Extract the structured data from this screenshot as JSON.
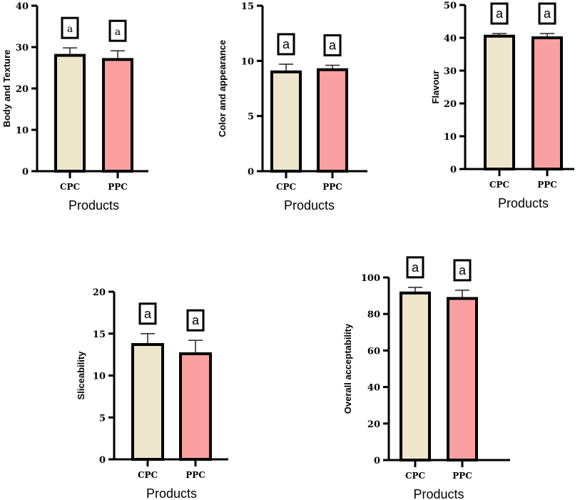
{
  "chart_data": [
    {
      "type": "bar",
      "ylabel": "Body and Texture",
      "xlabel": "Products",
      "categories": [
        "CPC",
        "PPC"
      ],
      "values": [
        28,
        27
      ],
      "errors": [
        1.8,
        2.1
      ],
      "letters": [
        "a",
        "a"
      ],
      "ylim": [
        0,
        40
      ],
      "yticks": [
        0,
        10,
        20,
        30,
        40
      ]
    },
    {
      "type": "bar",
      "ylabel": "Color and appearance",
      "xlabel": "Products",
      "categories": [
        "CPC",
        "PPC"
      ],
      "values": [
        9.0,
        9.2
      ],
      "errors": [
        0.7,
        0.4
      ],
      "letters": [
        "a",
        "a"
      ],
      "ylim": [
        0,
        15
      ],
      "yticks": [
        0,
        5,
        10,
        15
      ]
    },
    {
      "type": "bar",
      "ylabel": "Flavour",
      "xlabel": "Products",
      "categories": [
        "CPC",
        "PPC"
      ],
      "values": [
        40.5,
        40.0
      ],
      "errors": [
        0.8,
        1.3
      ],
      "letters": [
        "a",
        "a"
      ],
      "ylim": [
        0,
        50
      ],
      "yticks": [
        0,
        10,
        20,
        30,
        40,
        50
      ]
    },
    {
      "type": "bar",
      "ylabel": "Sliceability",
      "xlabel": "Products",
      "categories": [
        "CPC",
        "PPC"
      ],
      "values": [
        13.7,
        12.6
      ],
      "errors": [
        1.3,
        1.6
      ],
      "letters": [
        "a",
        "a"
      ],
      "ylim": [
        0,
        20
      ],
      "yticks": [
        0,
        5,
        10,
        15,
        20
      ]
    },
    {
      "type": "bar",
      "ylabel": "Overall acceptability",
      "xlabel": "Products",
      "categories": [
        "CPC",
        "PPC"
      ],
      "values": [
        91.5,
        88.5
      ],
      "errors": [
        3.1,
        4.5
      ],
      "letters": [
        "a",
        "a"
      ],
      "ylim": [
        0,
        100
      ],
      "yticks": [
        0,
        20,
        40,
        60,
        80,
        100
      ]
    }
  ],
  "colors": {
    "CPC": "#ede6cb",
    "PPC": "#fba0a0",
    "axis": "#000000"
  }
}
